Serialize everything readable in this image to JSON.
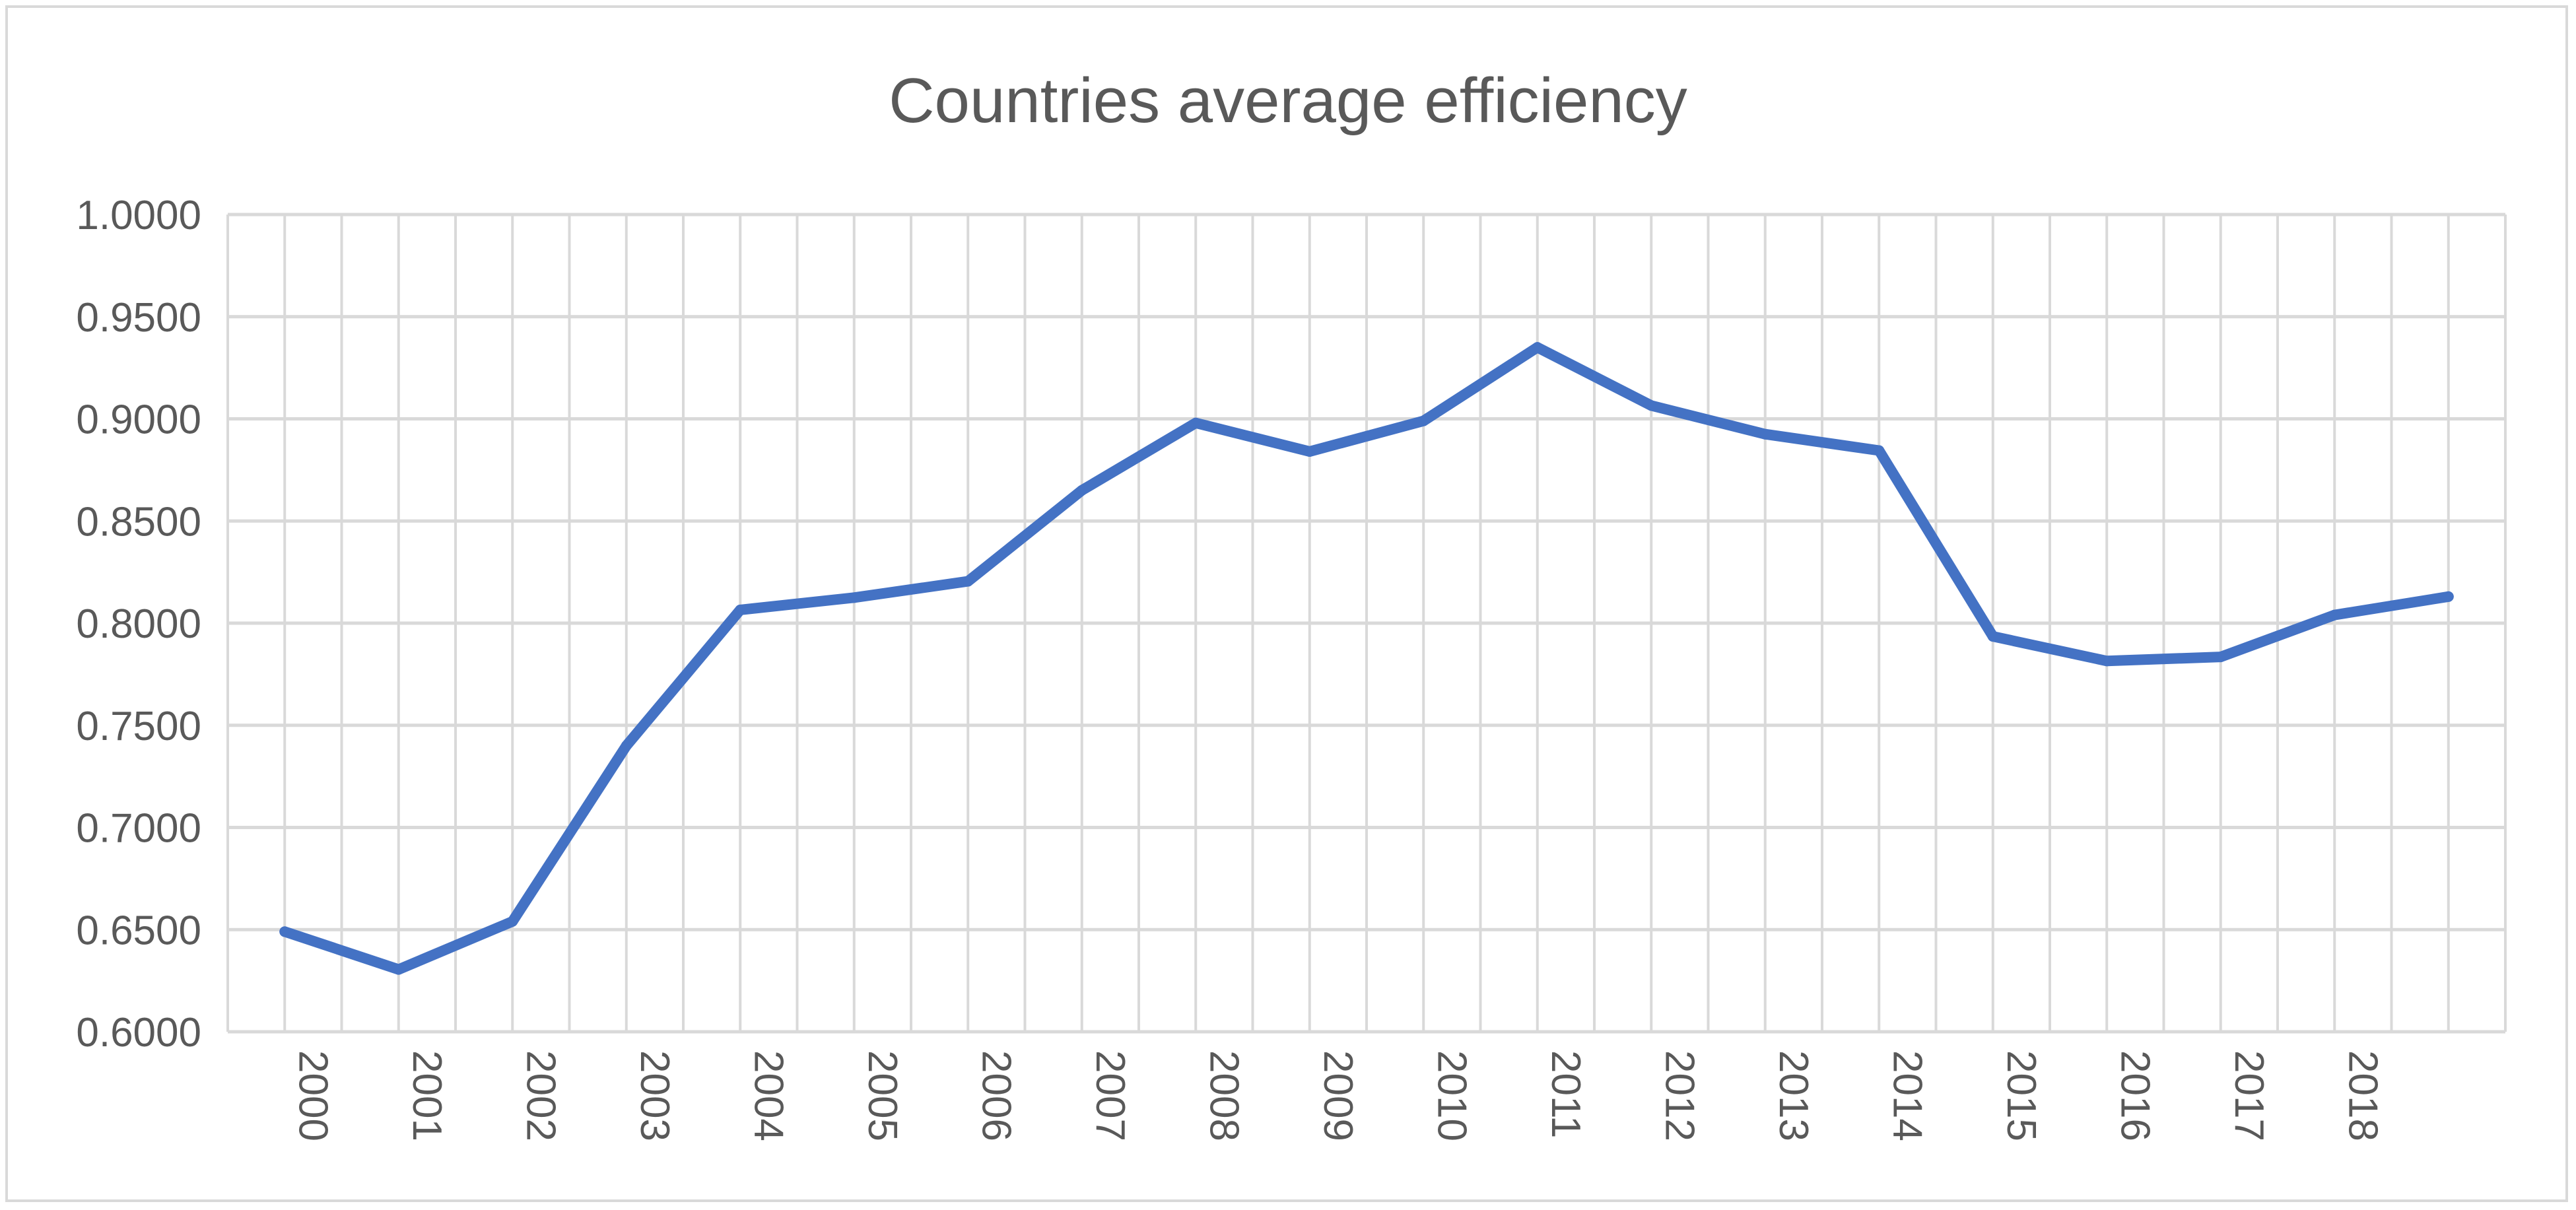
{
  "chart_data": {
    "type": "line",
    "title": "Countries average efficiency",
    "xlabel": "",
    "ylabel": "",
    "categories": [
      "2000",
      "2001",
      "2002",
      "2003",
      "2004",
      "2005",
      "2006",
      "2007",
      "2008",
      "2009",
      "2010",
      "2011",
      "2012",
      "2013",
      "2014",
      "2015",
      "2016",
      "2017",
      "2018",
      ""
    ],
    "series": [
      {
        "name": "Countries average efficiency",
        "values": [
          0.649,
          0.6305,
          0.654,
          0.74,
          0.8065,
          0.8125,
          0.8205,
          0.865,
          0.898,
          0.884,
          0.899,
          0.935,
          0.9065,
          0.8925,
          0.8845,
          0.7935,
          0.7815,
          0.7835,
          0.804,
          0.813
        ]
      }
    ],
    "ylim": [
      0.6,
      1.0
    ],
    "yticks": [
      "0.6000",
      "0.6500",
      "0.7000",
      "0.7500",
      "0.8000",
      "0.8500",
      "0.9000",
      "0.9500",
      "1.0000"
    ],
    "grid": true,
    "legend": "none",
    "colors": {
      "line": "#4472C4",
      "grid": "#d9d9d9",
      "text": "#595959",
      "border": "#d9d9d9"
    }
  }
}
